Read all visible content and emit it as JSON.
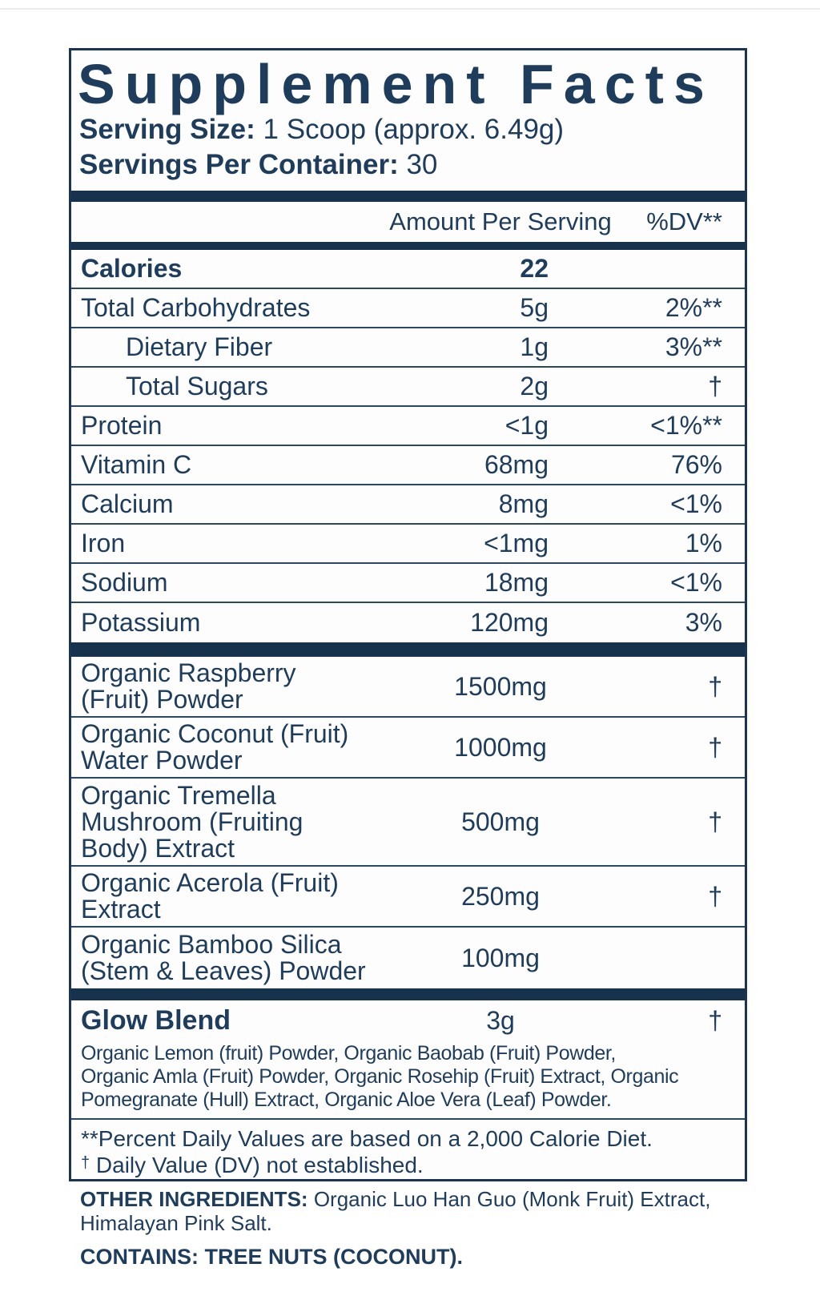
{
  "colors": {
    "text_navy": "#1e3c5c",
    "bar_navy": "#16324d",
    "border_navy": "#1a3553",
    "thin_line": "#2a4763",
    "background": "#ffffff"
  },
  "header": {
    "title": "Supplement Facts",
    "serving_size_label": "Serving Size:",
    "serving_size_value": "1 Scoop (approx. 6.49g)",
    "servings_per_container_label": "Servings Per Container:",
    "servings_per_container_value": "30"
  },
  "column_headers": {
    "amount": "Amount Per Serving",
    "dv": "%DV**"
  },
  "nutrients": [
    {
      "name": "Calories",
      "amount": "22",
      "dv": ""
    },
    {
      "name": "Total Carbohydrates",
      "amount": "5g",
      "dv": "2%**"
    },
    {
      "name": "Dietary Fiber",
      "amount": "1g",
      "dv": "3%**"
    },
    {
      "name": "Total Sugars",
      "amount": "2g",
      "dv": "†"
    },
    {
      "name": "Protein",
      "amount": "<1g",
      "dv": "<1%**"
    },
    {
      "name": "Vitamin C",
      "amount": "68mg",
      "dv": "76%"
    },
    {
      "name": "Calcium",
      "amount": "8mg",
      "dv": "<1%"
    },
    {
      "name": "Iron",
      "amount": "<1mg",
      "dv": "1%"
    },
    {
      "name": "Sodium",
      "amount": "18mg",
      "dv": "<1%"
    },
    {
      "name": "Potassium",
      "amount": "120mg",
      "dv": "3%"
    }
  ],
  "ingredients": [
    {
      "name_lines": [
        "Organic Raspberry",
        "(Fruit) Powder"
      ],
      "amount": "1500mg",
      "dv": "†"
    },
    {
      "name_lines": [
        "Organic Coconut (Fruit)",
        "Water Powder"
      ],
      "amount": "1000mg",
      "dv": "†"
    },
    {
      "name_lines": [
        "Organic Tremella",
        "Mushroom (Fruiting",
        "Body) Extract"
      ],
      "amount": "500mg",
      "dv": "†"
    },
    {
      "name_lines": [
        "Organic Acerola (Fruit)",
        "Extract"
      ],
      "amount": "250mg",
      "dv": "†"
    },
    {
      "name_lines": [
        "Organic Bamboo Silica",
        "(Stem & Leaves) Powder"
      ],
      "amount": "100mg",
      "dv": ""
    }
  ],
  "blend": {
    "name": "Glow Blend",
    "amount": "3g",
    "dv": "†",
    "description_lines": [
      "Organic Lemon (fruit) Powder, Organic Baobab (Fruit) Powder,",
      "Organic Amla (Fruit) Powder, Organic Rosehip (Fruit) Extract, Organic",
      "Pomegranate (Hull) Extract, Organic Aloe Vera (Leaf) Powder."
    ]
  },
  "footnotes": {
    "percent_dv": "**Percent Daily Values are based on a 2,000 Calorie Diet.",
    "dagger_symbol": "†",
    "dagger_text": "Daily Value (DV) not established."
  },
  "bottom": {
    "other_ingredients_label": "OTHER INGREDIENTS:",
    "other_ingredients_value_line1": "Organic Luo Han Guo (Monk Fruit) Extract,",
    "other_ingredients_value_line2": "Himalayan Pink Salt.",
    "contains": "CONTAINS: TREE NUTS (COCONUT)."
  }
}
